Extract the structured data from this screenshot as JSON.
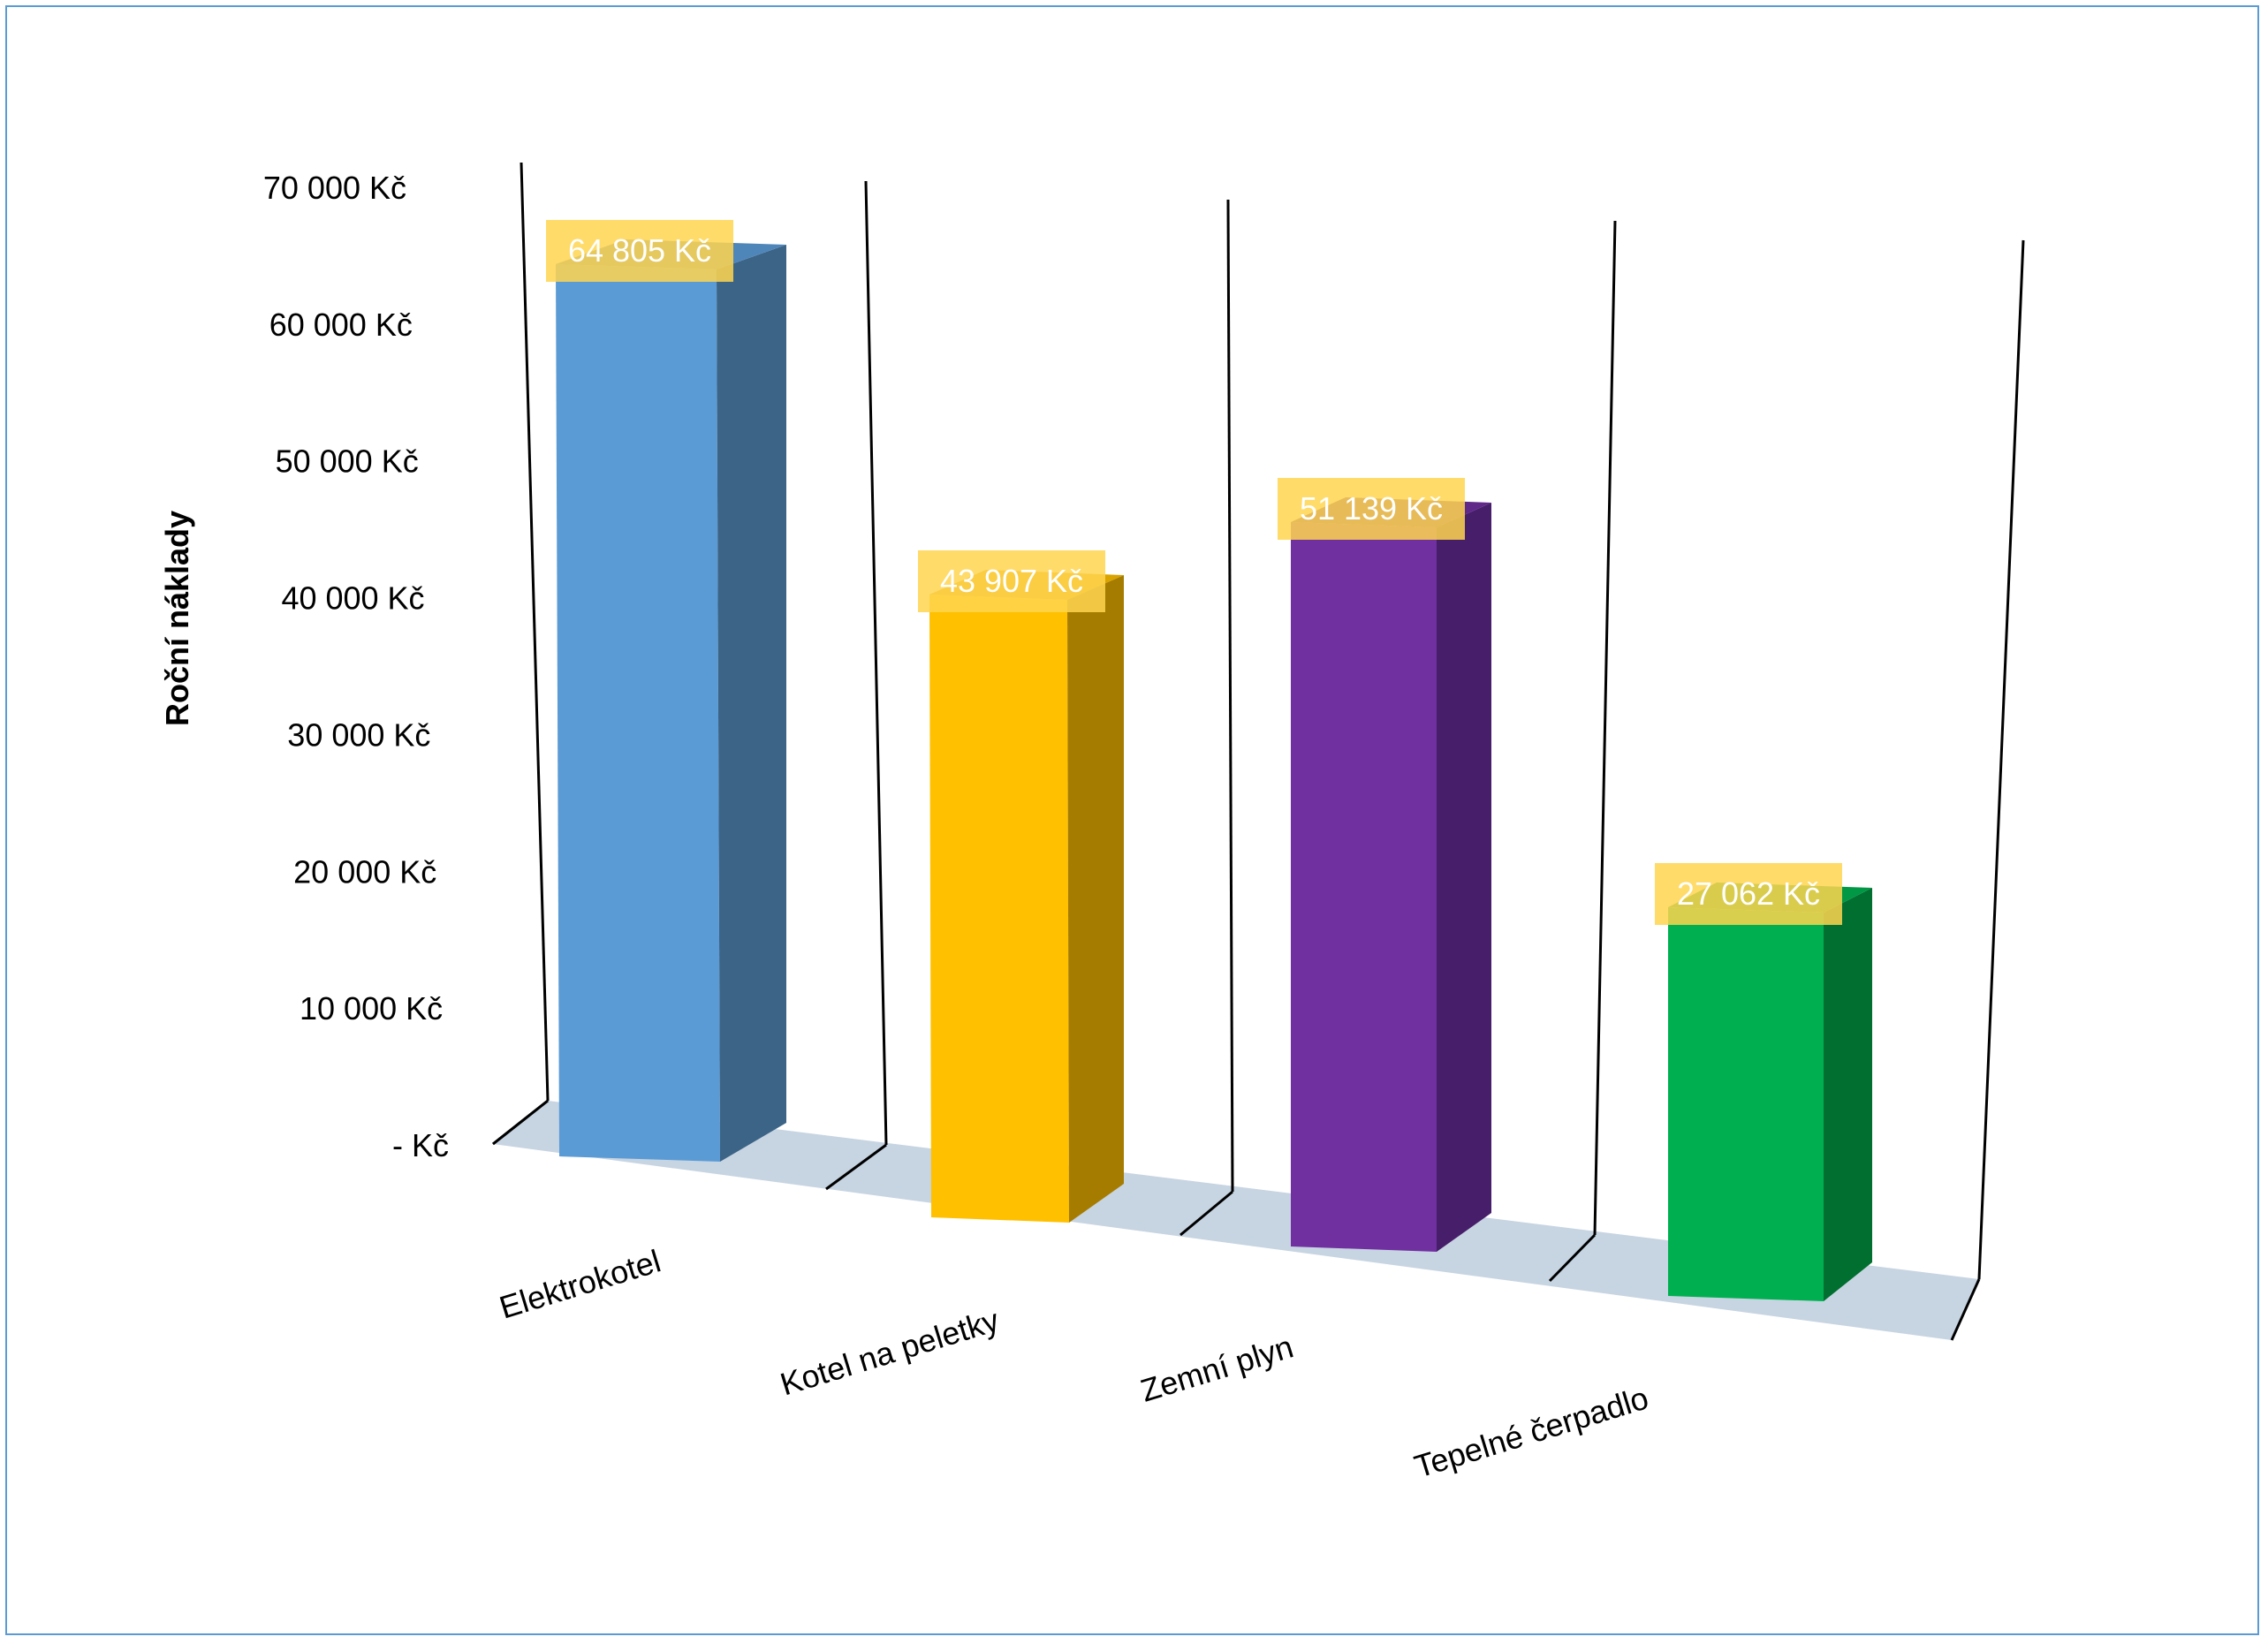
{
  "chart_data": {
    "type": "bar",
    "variant": "3d-column",
    "ylabel": "Roční náklady",
    "xlabel": "",
    "categories": [
      "Elektrokotel",
      "Kotel na peletky",
      "Zemní plyn",
      "Tepelné čerpadlo"
    ],
    "values": [
      64805,
      43907,
      51139,
      27062
    ],
    "value_labels": [
      "64 805 Kč",
      "43 907 Kč",
      "51 139 Kč",
      "27 062 Kč"
    ],
    "colors": [
      "#5b9bd5",
      "#ffc000",
      "#7030a0",
      "#00b050"
    ],
    "side_colors": [
      "#3c6487",
      "#a67c00",
      "#471e6a",
      "#006f2f"
    ],
    "top_colors": [
      "#4f86ba",
      "#d9a300",
      "#5f2889",
      "#009745"
    ],
    "label_background": "#ffd54f",
    "ylim": [
      0,
      70000
    ],
    "yticks": [
      0,
      10000,
      20000,
      30000,
      40000,
      50000,
      60000,
      70000
    ],
    "ytick_labels": [
      "-   Kč",
      "10 000 Kč",
      "20 000 Kč",
      "30 000 Kč",
      "40 000 Kč",
      "50 000 Kč",
      "60 000 Kč",
      "70 000 Kč"
    ],
    "grid": false,
    "legend": "none"
  }
}
